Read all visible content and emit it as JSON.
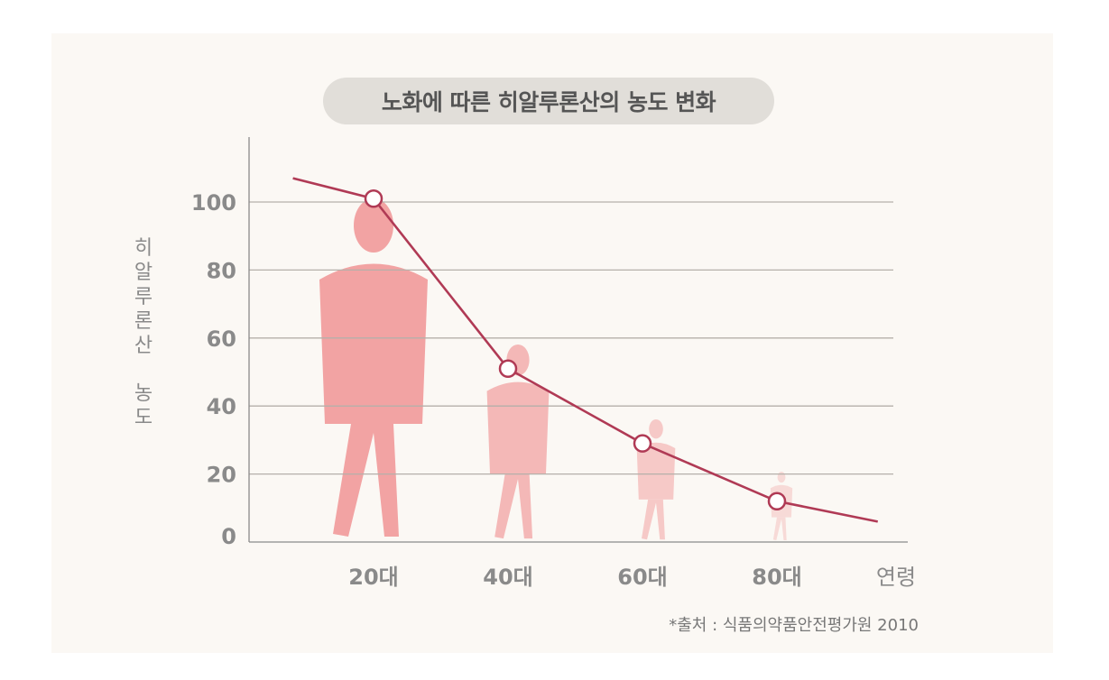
{
  "chart_data": {
    "type": "line",
    "title": "노화에 따른 히알루론산의 농도 변화",
    "ylabel_line1": "히알루론산",
    "ylabel_line2": "농도",
    "xlabel": "연령",
    "source": "*출처 : 식품의약품안전평가원 2010",
    "categories": [
      "20대",
      "40대",
      "60대",
      "80대"
    ],
    "yticks": [
      0,
      20,
      40,
      60,
      80,
      100
    ],
    "ylim": [
      0,
      100
    ],
    "grid": true,
    "series": [
      {
        "x": [
          20,
          40,
          60,
          80
        ],
        "values": [
          101,
          51,
          29,
          12
        ]
      }
    ],
    "line_start": {
      "x": 8,
      "y": 107
    },
    "line_end": {
      "x": 95,
      "y": 6
    },
    "colors": {
      "line": "#b03a55",
      "figure": "#f2a3a3",
      "grid": "#b5b0aa",
      "axis": "#8a8a8a",
      "tick_text": "#8a8a8a"
    }
  }
}
